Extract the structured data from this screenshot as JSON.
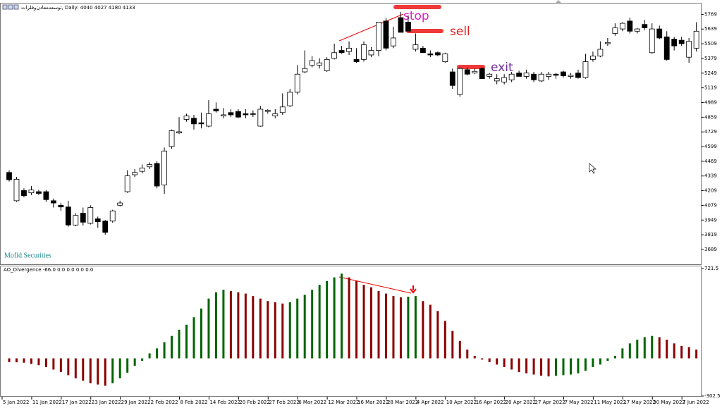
{
  "chart_data": [
    {
      "type": "candlestick",
      "title": "توسعه‌معادن‌وفلزات, Daily:  4040 4027 4180 4133",
      "watermark": "Mofid Securities",
      "annotations": [
        "stop",
        "sell",
        "exit"
      ],
      "categories": [
        "5 Jan 2022",
        null,
        null,
        null,
        "11 Jan 2022",
        null,
        null,
        null,
        "17 Jan 2022",
        null,
        null,
        null,
        "23 Jan 2022",
        null,
        null,
        null,
        "29 Jan 2022",
        null,
        null,
        null,
        "2 Feb 2022",
        null,
        null,
        null,
        "8 Feb 2022",
        null,
        null,
        null,
        "14 Feb 2022",
        null,
        null,
        null,
        "20 Feb 2022",
        null,
        null,
        null,
        "27 Feb 2022",
        null,
        null,
        null,
        "6 Mar 2022",
        null,
        null,
        null,
        "12 Mar 2022",
        null,
        null,
        null,
        "16 Mar 2022",
        null,
        null,
        null,
        "28 Mar 2022",
        null,
        null,
        null,
        "4 Apr 2022",
        null,
        null,
        null,
        "10 Apr 2022",
        null,
        null,
        null,
        "16 Apr 2022",
        null,
        null,
        null,
        "20 Apr 2022",
        null,
        null,
        null,
        "27 Apr 2022",
        null,
        null,
        null,
        "7 May 2022",
        null,
        null,
        null,
        "11 May 2022",
        null,
        null,
        null,
        "17 May 2022",
        null,
        null,
        null,
        "30 May 2022",
        null,
        null,
        null,
        "7 Jun 2022",
        null
      ],
      "open": [
        4370,
        4120,
        4210,
        4190,
        4200,
        4200,
        4120,
        4080,
        4065,
        3905,
        4010,
        3920,
        3960,
        3940,
        3940,
        4080,
        4200,
        4350,
        4380,
        4420,
        4450,
        4260,
        4600,
        4720,
        4840,
        4850,
        4810,
        4780,
        4930,
        4870,
        4900,
        4910,
        4890,
        4890,
        4780,
        4910,
        4870,
        4900,
        4960,
        5080,
        5260,
        5320,
        5320,
        5270,
        5380,
        5450,
        5440,
        5370,
        5370,
        5410,
        5450,
        5710,
        5490,
        5740,
        5700,
        5460,
        5470,
        5420,
        5430,
        5350,
        5260,
        5060,
        5280,
        5250,
        5290,
        5220,
        5180,
        5170,
        5190,
        5250,
        5220,
        5240,
        5180,
        5220,
        5240,
        5260,
        5220,
        5250,
        5210,
        5370,
        5400,
        5510,
        5600,
        5640,
        5710,
        5620,
        5680,
        5430,
        5640,
        5570,
        5550,
        5540,
        5390,
        5470
      ],
      "high": [
        4390,
        4330,
        4230,
        4250,
        4215,
        4215,
        4140,
        4100,
        4120,
        4010,
        4060,
        4080,
        3980,
        3950,
        4040,
        4120,
        4390,
        4400,
        4440,
        4460,
        4470,
        4590,
        4750,
        4860,
        4890,
        4880,
        4900,
        5010,
        4990,
        4940,
        4930,
        4930,
        4930,
        4920,
        4960,
        4930,
        4930,
        5070,
        5110,
        5320,
        5450,
        5400,
        5380,
        5390,
        5510,
        5490,
        5530,
        5470,
        5530,
        5480,
        5700,
        5740,
        5660,
        5790,
        5760,
        5600,
        5490,
        5450,
        5440,
        5430,
        5290,
        5300,
        5300,
        5290,
        5300,
        5250,
        5240,
        5240,
        5260,
        5270,
        5280,
        5260,
        5260,
        5260,
        5250,
        5270,
        5250,
        5280,
        5420,
        5440,
        5530,
        5560,
        5690,
        5700,
        5740,
        5650,
        5720,
        5690,
        5670,
        5620,
        5570,
        5570,
        5560,
        5700
      ],
      "low": [
        4290,
        4110,
        4150,
        4170,
        4170,
        4110,
        4060,
        4030,
        3890,
        3895,
        3900,
        3910,
        3880,
        3820,
        3925,
        4070,
        4190,
        4330,
        4360,
        4400,
        4230,
        4180,
        4580,
        4710,
        4820,
        4750,
        4760,
        4770,
        4900,
        4850,
        4860,
        4850,
        4850,
        4860,
        4775,
        4890,
        4850,
        4880,
        4950,
        5060,
        5250,
        5300,
        5290,
        5260,
        5370,
        5420,
        5410,
        5340,
        5350,
        5390,
        5400,
        5450,
        5470,
        5610,
        5630,
        5440,
        5430,
        5390,
        5400,
        5340,
        5110,
        5040,
        5230,
        5240,
        5200,
        5200,
        5150,
        5150,
        5170,
        5220,
        5200,
        5170,
        5170,
        5190,
        5200,
        5210,
        5200,
        5200,
        5200,
        5350,
        5390,
        5490,
        5580,
        5620,
        5600,
        5600,
        5630,
        5420,
        5550,
        5360,
        5450,
        5490,
        5340,
        5440
      ],
      "close": [
        4306,
        4310,
        4165,
        4215,
        4185,
        4130,
        4100,
        4065,
        3905,
        3990,
        3930,
        4060,
        3935,
        3840,
        4030,
        4100,
        4340,
        4370,
        4410,
        4440,
        4250,
        4560,
        4740,
        4730,
        4870,
        4800,
        4800,
        4890,
        4915,
        4880,
        4880,
        4860,
        4880,
        4885,
        4930,
        4920,
        4890,
        4950,
        5080,
        5240,
        5290,
        5360,
        5340,
        5370,
        5430,
        5430,
        5470,
        5350,
        5500,
        5450,
        5700,
        5470,
        5560,
        5610,
        5620,
        5500,
        5430,
        5410,
        5410,
        5420,
        5140,
        5290,
        5240,
        5265,
        5200,
        5240,
        5200,
        5210,
        5240,
        5220,
        5250,
        5190,
        5240,
        5240,
        5230,
        5225,
        5230,
        5210,
        5350,
        5400,
        5460,
        5520,
        5650,
        5690,
        5620,
        5640,
        5650,
        5640,
        5560,
        5370,
        5490,
        5510,
        5530,
        5620
      ],
      "up_color": "#ffffff",
      "down_color": "#000000",
      "ylim": [
        3558,
        5865
      ],
      "yticks": [
        3689,
        3819,
        3949,
        4079,
        4209,
        4339,
        4469,
        4599,
        4729,
        4859,
        4989,
        5119,
        5249,
        5379,
        5509,
        5639,
        5769
      ]
    },
    {
      "type": "bar",
      "title": "AO_Divergence -66.0 0.0 0.0 0.0 0.0",
      "values": [
        -30,
        -32,
        -35,
        -45,
        -55,
        -70,
        -90,
        -110,
        -135,
        -160,
        -180,
        -200,
        -210,
        -220,
        -200,
        -160,
        -115,
        -60,
        -20,
        40,
        80,
        130,
        180,
        230,
        270,
        330,
        400,
        480,
        530,
        550,
        540,
        530,
        520,
        500,
        480,
        460,
        450,
        440,
        450,
        480,
        510,
        550,
        590,
        620,
        650,
        680,
        650,
        620,
        590,
        570,
        540,
        520,
        500,
        490,
        495,
        500,
        460,
        430,
        380,
        300,
        220,
        140,
        70,
        20,
        -10,
        -30,
        -50,
        -70,
        -90,
        -110,
        -120,
        -130,
        -140,
        -145,
        -140,
        -135,
        -130,
        -120,
        -100,
        -70,
        -50,
        -20,
        20,
        80,
        120,
        150,
        170,
        180,
        170,
        150,
        120,
        100,
        90,
        70
      ],
      "up_color": "#006400",
      "down_color": "#8b0000",
      "ylim": [
        -302.5,
        721.5
      ],
      "yticks": [
        721.5,
        -302.5
      ]
    }
  ]
}
